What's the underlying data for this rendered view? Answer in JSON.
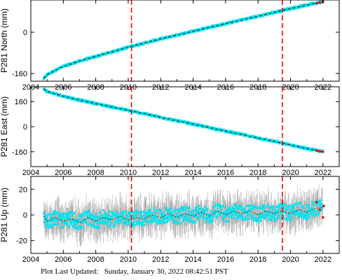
{
  "footer_text": "Plot Last Updated:   Sunday, January 30, 2022 08:42:51 PST",
  "colors": {
    "scatter": "#00e5f0",
    "error_bars": "#b0b0b0",
    "model_line": "#000000",
    "recent_points": "#ff0000",
    "event_lines": "#ff0000",
    "frame": "#000000"
  },
  "chart_data": [
    {
      "type": "scatter",
      "title": "",
      "xlabel": "",
      "ylabel": "P281 North (mm)",
      "xlim": [
        2004.0,
        2023.0
      ],
      "ylim": [
        -190,
        125
      ],
      "x_ticks": [
        2004,
        2006,
        2008,
        2010,
        2012,
        2014,
        2016,
        2018,
        2020,
        2022
      ],
      "x_tick_labels": [
        "2004",
        "2006",
        "2008",
        "2010",
        "2012",
        "2014",
        "2016",
        "2018",
        "2020",
        "2022"
      ],
      "y_ticks": [
        -160,
        0
      ],
      "y_tick_labels": [
        "-160",
        "0"
      ],
      "event_lines": [
        2010.2,
        2019.5
      ],
      "series": [
        {
          "x": [
            2004.8,
            2005.0,
            2005.5,
            2006.0,
            2007.0,
            2008.0,
            2009.0,
            2010.0,
            2011.0,
            2012.0,
            2013.0,
            2014.0,
            2015.0,
            2016.0,
            2017.0,
            2018.0,
            2019.0,
            2020.0,
            2021.0,
            2021.5,
            2022.0
          ],
          "values": [
            -180,
            -165,
            -148,
            -133,
            -112,
            -94,
            -76,
            -58,
            -42,
            -26,
            -11,
            4,
            19,
            33,
            48,
            62,
            77,
            92,
            105,
            113,
            118
          ]
        }
      ],
      "recent_points": {
        "x": [
          2021.6,
          2021.8,
          2022.0
        ],
        "values": [
          112,
          115,
          118
        ]
      },
      "grid": false
    },
    {
      "type": "scatter",
      "title": "",
      "xlabel": "",
      "ylabel": "P281 East (mm)",
      "xlim": [
        2004.0,
        2023.0
      ],
      "ylim": [
        -255,
        255
      ],
      "x_ticks": [
        2004,
        2006,
        2008,
        2010,
        2012,
        2014,
        2016,
        2018,
        2020,
        2022
      ],
      "x_tick_labels": [
        "2004",
        "2006",
        "2008",
        "2010",
        "2012",
        "2014",
        "2016",
        "2018",
        "2020",
        "2022"
      ],
      "y_ticks": [
        -160,
        0,
        160
      ],
      "y_tick_labels": [
        "-160",
        "0",
        "160"
      ],
      "event_lines": [
        2010.2,
        2019.5
      ],
      "series": [
        {
          "x": [
            2004.8,
            2005.0,
            2005.5,
            2006.0,
            2007.0,
            2008.0,
            2009.0,
            2010.0,
            2011.0,
            2012.0,
            2013.0,
            2014.0,
            2015.0,
            2016.0,
            2017.0,
            2018.0,
            2019.0,
            2020.0,
            2021.0,
            2022.0
          ],
          "values": [
            242,
            225,
            210,
            195,
            170,
            148,
            126,
            104,
            83,
            60,
            38,
            16,
            -6,
            -28,
            -50,
            -72,
            -94,
            -117,
            -140,
            -160
          ]
        }
      ],
      "recent_points": {
        "x": [
          2021.6,
          2021.8,
          2022.0
        ],
        "values": [
          -152,
          -156,
          -160
        ]
      },
      "grid": false
    },
    {
      "type": "scatter",
      "title": "",
      "xlabel": "",
      "ylabel": "P281 Up (mm)",
      "xlim": [
        2004.0,
        2023.0
      ],
      "ylim": [
        -30,
        30
      ],
      "x_ticks": [
        2004,
        2006,
        2008,
        2010,
        2012,
        2014,
        2016,
        2018,
        2020,
        2022
      ],
      "x_tick_labels": [
        "2004",
        "2006",
        "2008",
        "2010",
        "2012",
        "2014",
        "2016",
        "2018",
        "2020",
        "2022"
      ],
      "y_ticks": [
        -20,
        0,
        20
      ],
      "y_tick_labels": [
        "-20",
        "0",
        "20"
      ],
      "event_lines": [
        2010.2,
        2019.5
      ],
      "series": [
        {
          "x": [
            2004.8,
            2005.0,
            2005.5,
            2006.0,
            2006.5,
            2007.0,
            2007.5,
            2008.0,
            2008.5,
            2009.0,
            2009.5,
            2010.0,
            2010.5,
            2011.0,
            2011.5,
            2012.0,
            2012.5,
            2013.0,
            2013.5,
            2014.0,
            2014.5,
            2015.0,
            2015.5,
            2016.0,
            2016.5,
            2017.0,
            2017.5,
            2018.0,
            2018.5,
            2019.0,
            2019.5,
            2020.0,
            2020.5,
            2021.0,
            2021.5,
            2022.0
          ],
          "values": [
            -1,
            -5,
            -2,
            -5,
            -3,
            -6,
            -2,
            -5,
            -2,
            -4,
            -1,
            -4,
            -2,
            -3,
            0,
            -2,
            1,
            -2,
            1,
            -1,
            2,
            -1,
            3,
            0,
            3,
            1,
            3,
            0,
            3,
            1,
            3,
            1,
            4,
            2,
            5,
            6
          ]
        }
      ],
      "recent_points": {
        "x": [
          2021.6,
          2021.8,
          2022.0,
          2022.05
        ],
        "values": [
          10,
          4,
          -2,
          7
        ]
      },
      "grid": false
    }
  ]
}
